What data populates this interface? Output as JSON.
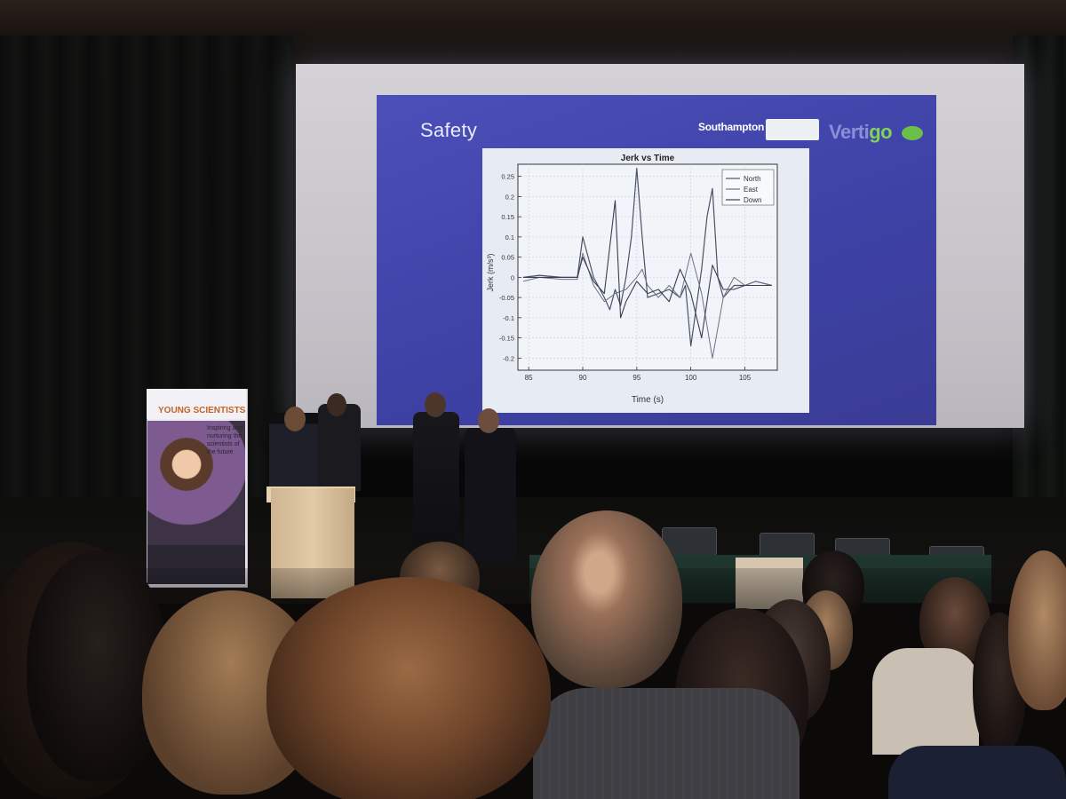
{
  "slide": {
    "title": "Safety",
    "logo_southampton": "Southampton",
    "logo_vertigo_a": "Verti",
    "logo_vertigo_b": "go"
  },
  "banner": {
    "title": "YOUNG SCIENTISTS",
    "text": "Inspiring and nurturing the scientists of the future"
  },
  "colors": {
    "slide_bg": "#3e42a6",
    "chart_bg": "#e7ecf4",
    "line": "#5a5d70"
  },
  "chart_data": {
    "type": "line",
    "title": "Jerk vs Time",
    "xlabel": "Time (s)",
    "ylabel": "Jerk (m/s³)",
    "xlim": [
      84,
      108
    ],
    "ylim": [
      -0.23,
      0.28
    ],
    "x_ticks": [
      85,
      90,
      95,
      100,
      105
    ],
    "y_ticks": [
      0.25,
      0.2,
      0.15,
      0.1,
      0.05,
      0,
      -0.05,
      -0.1,
      -0.15,
      -0.2
    ],
    "legend_position": "top-right",
    "grid": true,
    "series": [
      {
        "name": "North",
        "x": [
          84.5,
          86,
          88,
          89.5,
          90,
          91,
          92,
          92.5,
          93,
          93.5,
          94,
          94.5,
          95,
          95.5,
          96,
          97,
          98,
          99,
          99.5,
          100,
          101,
          101.5,
          102,
          102.5,
          103,
          104,
          105,
          106,
          107.5
        ],
        "y": [
          0,
          0.005,
          0.0,
          0.0,
          0.1,
          0.0,
          -0.05,
          -0.08,
          -0.03,
          -0.07,
          0.0,
          0.1,
          0.27,
          0.1,
          -0.05,
          -0.04,
          -0.03,
          -0.05,
          -0.02,
          -0.17,
          0.02,
          0.15,
          0.22,
          0.0,
          -0.05,
          -0.02,
          -0.02,
          -0.01,
          -0.02
        ]
      },
      {
        "name": "East",
        "x": [
          84.5,
          86,
          88,
          89.5,
          90,
          91,
          92,
          93,
          94,
          95,
          95.5,
          96,
          97,
          98,
          99,
          100,
          101,
          102,
          103,
          104,
          105,
          106,
          107.5
        ],
        "y": [
          -0.01,
          0.0,
          -0.005,
          -0.005,
          0.06,
          -0.02,
          -0.06,
          -0.04,
          -0.03,
          0.0,
          0.02,
          -0.02,
          -0.05,
          -0.02,
          -0.05,
          0.06,
          -0.04,
          -0.2,
          -0.05,
          0.0,
          -0.02,
          -0.01,
          -0.02
        ]
      },
      {
        "name": "Down",
        "x": [
          84.5,
          86,
          88,
          89.5,
          90,
          91,
          92,
          93,
          93.5,
          94,
          95,
          96,
          97,
          98,
          99,
          100,
          101,
          102,
          103,
          104,
          105,
          106,
          107.5
        ],
        "y": [
          0.0,
          0.0,
          0.0,
          0.0,
          0.05,
          -0.01,
          -0.04,
          0.19,
          -0.1,
          -0.06,
          -0.01,
          -0.04,
          -0.03,
          -0.06,
          0.02,
          -0.04,
          -0.15,
          0.03,
          -0.03,
          -0.03,
          -0.02,
          -0.02,
          -0.02
        ]
      }
    ]
  }
}
